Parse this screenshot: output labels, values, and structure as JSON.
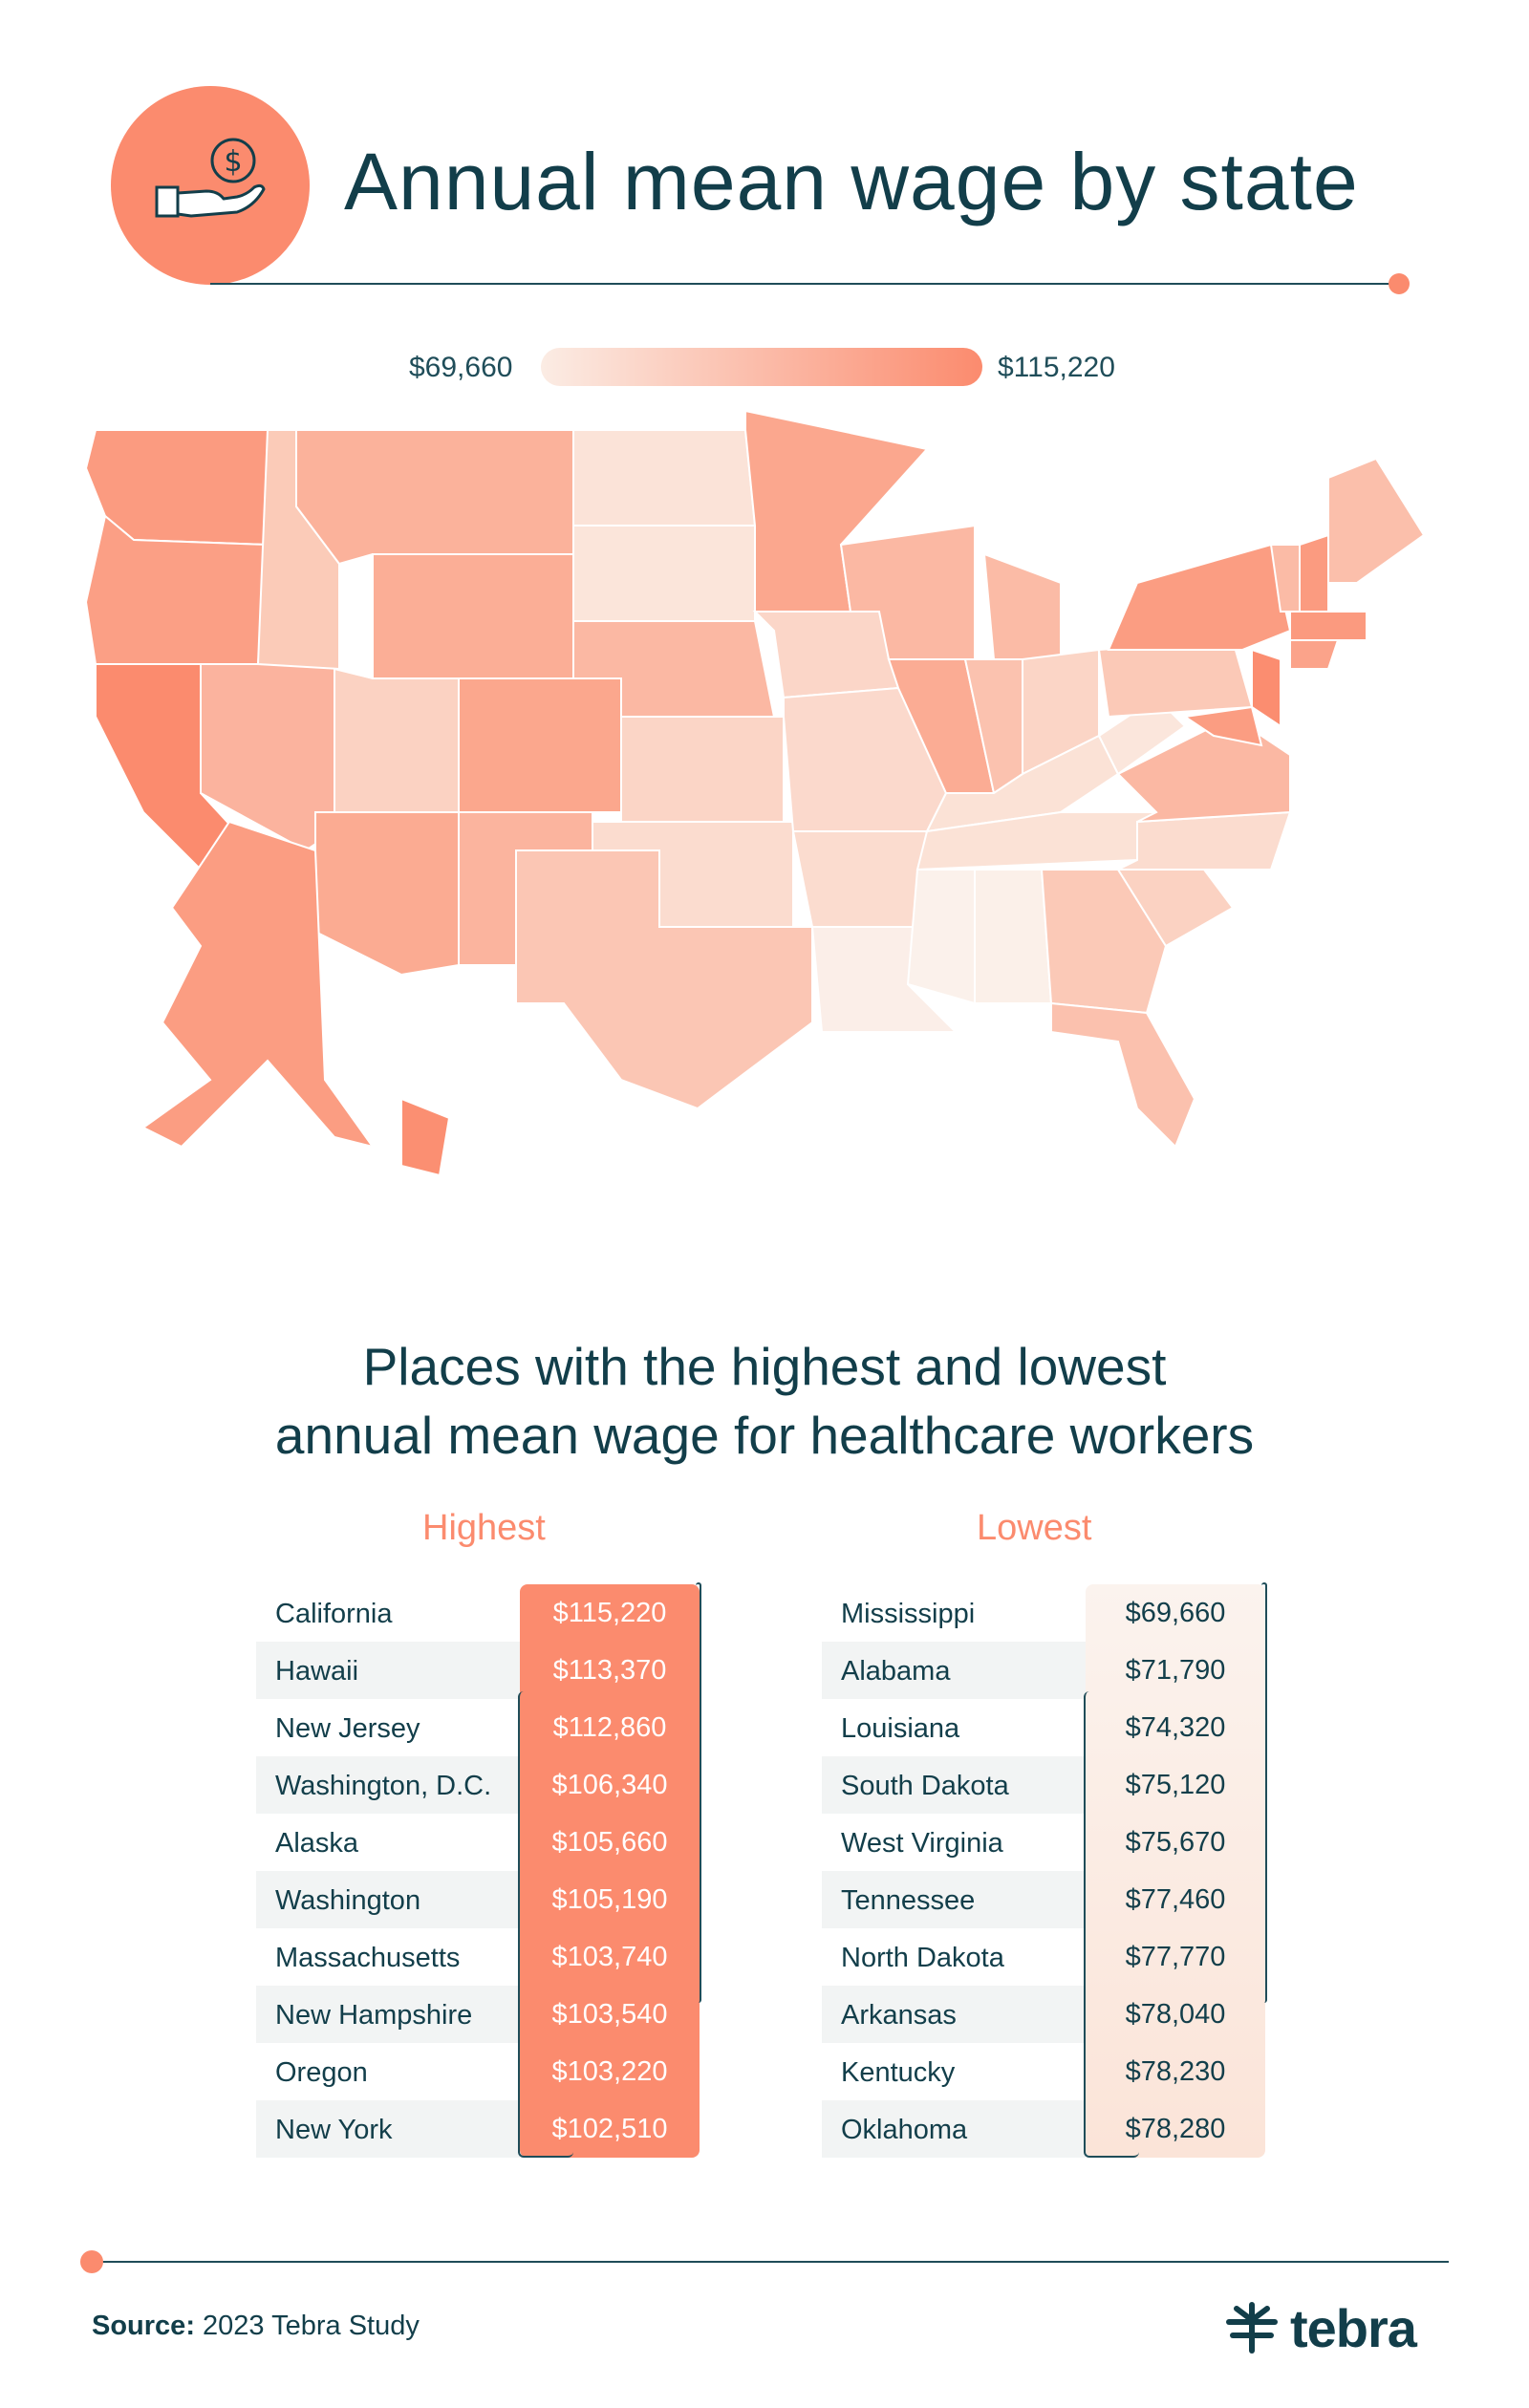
{
  "header": {
    "title": "Annual mean wage by state",
    "icon": "hand-dollar-coin-icon"
  },
  "legend": {
    "min_label": "$69,660",
    "max_label": "$115,220",
    "min_color": "#fbece4",
    "max_color": "#fb8b6e"
  },
  "section": {
    "title_line1": "Places with the highest and lowest",
    "title_line2": "annual mean wage for healthcare workers"
  },
  "highest": {
    "heading": "Highest",
    "rows": [
      {
        "state": "California",
        "wage": "$115,220"
      },
      {
        "state": "Hawaii",
        "wage": "$113,370"
      },
      {
        "state": "New Jersey",
        "wage": "$112,860"
      },
      {
        "state": "Washington, D.C.",
        "wage": "$106,340"
      },
      {
        "state": "Alaska",
        "wage": "$105,660"
      },
      {
        "state": "Washington",
        "wage": "$105,190"
      },
      {
        "state": "Massachusetts",
        "wage": "$103,740"
      },
      {
        "state": "New Hampshire",
        "wage": "$103,540"
      },
      {
        "state": "Oregon",
        "wage": "$103,220"
      },
      {
        "state": "New York",
        "wage": "$102,510"
      }
    ]
  },
  "lowest": {
    "heading": "Lowest",
    "rows": [
      {
        "state": "Mississippi",
        "wage": "$69,660"
      },
      {
        "state": "Alabama",
        "wage": "$71,790"
      },
      {
        "state": "Louisiana",
        "wage": "$74,320"
      },
      {
        "state": "South Dakota",
        "wage": "$75,120"
      },
      {
        "state": "West Virginia",
        "wage": "$75,670"
      },
      {
        "state": "Tennessee",
        "wage": "$77,460"
      },
      {
        "state": "North Dakota",
        "wage": "$77,770"
      },
      {
        "state": "Arkansas",
        "wage": "$78,040"
      },
      {
        "state": "Kentucky",
        "wage": "$78,230"
      },
      {
        "state": "Oklahoma",
        "wage": "$78,280"
      }
    ]
  },
  "footer": {
    "source_label": "Source:",
    "source_text": "2023 Tebra Study",
    "brand": "tebra"
  }
}
